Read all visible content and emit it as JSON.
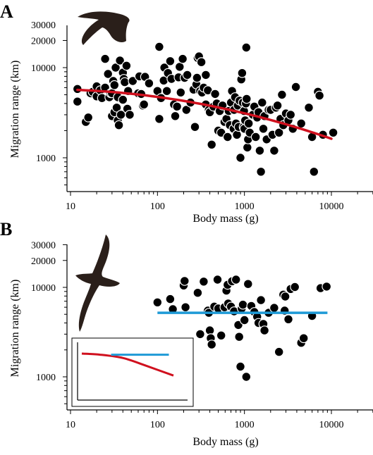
{
  "panels": [
    {
      "letter": "A",
      "silhouette": "flying-bird-icon",
      "xlabel": "Body mass (g)",
      "ylabel": "Migration range (km)"
    },
    {
      "letter": "B",
      "silhouette": "albatross-icon",
      "xlabel": "Body mass (g)",
      "ylabel": "Migration range (km)"
    }
  ],
  "colors": {
    "trend_red": "#d0101e",
    "trend_blue": "#1e9ad6",
    "points": "#000000"
  },
  "chart_data": [
    {
      "type": "scatter",
      "panel": "A",
      "xscale": "log",
      "yscale": "log",
      "xlim": [
        10,
        30000
      ],
      "ylim": [
        350,
        40000
      ],
      "x_ticks": [
        10,
        100,
        1000,
        10000
      ],
      "x_tick_labels": [
        "10",
        "100",
        "1000",
        "10000"
      ],
      "y_ticks": [
        1000,
        10000,
        20000,
        30000
      ],
      "y_tick_labels": [
        "1000",
        "10000",
        "20000",
        "30000"
      ],
      "xlabel": "Body mass (g)",
      "ylabel": "Migration range (km)",
      "points": [
        [
          12,
          4200
        ],
        [
          12,
          5800
        ],
        [
          15,
          2500
        ],
        [
          16,
          2800
        ],
        [
          17,
          5200
        ],
        [
          18,
          5400
        ],
        [
          20,
          4800
        ],
        [
          20,
          6200
        ],
        [
          22,
          5600
        ],
        [
          23,
          4600
        ],
        [
          25,
          12500
        ],
        [
          25,
          6000
        ],
        [
          27,
          8500
        ],
        [
          28,
          4700
        ],
        [
          29,
          5200
        ],
        [
          30,
          5200
        ],
        [
          30,
          2900
        ],
        [
          31,
          7100
        ],
        [
          32,
          6400
        ],
        [
          32,
          3200
        ],
        [
          33,
          10000
        ],
        [
          34,
          3600
        ],
        [
          35,
          4700
        ],
        [
          35,
          2600
        ],
        [
          36,
          2300
        ],
        [
          37,
          12000
        ],
        [
          38,
          3000
        ],
        [
          40,
          8800
        ],
        [
          40,
          4400
        ],
        [
          41,
          7500
        ],
        [
          42,
          6900
        ],
        [
          44,
          10500
        ],
        [
          45,
          3500
        ],
        [
          46,
          5500
        ],
        [
          48,
          3000
        ],
        [
          52,
          7100
        ],
        [
          60,
          5200
        ],
        [
          62,
          8000
        ],
        [
          65,
          5100
        ],
        [
          68,
          3800
        ],
        [
          70,
          3900
        ],
        [
          72,
          7900
        ],
        [
          80,
          6700
        ],
        [
          100,
          5500
        ],
        [
          105,
          17000
        ],
        [
          105,
          2700
        ],
        [
          110,
          4600
        ],
        [
          118,
          7200
        ],
        [
          120,
          10000
        ],
        [
          128,
          5500
        ],
        [
          132,
          8700
        ],
        [
          140,
          11800
        ],
        [
          145,
          7500
        ],
        [
          155,
          3900
        ],
        [
          160,
          2900
        ],
        [
          168,
          3700
        ],
        [
          175,
          7800
        ],
        [
          180,
          10200
        ],
        [
          185,
          5300
        ],
        [
          195,
          12500
        ],
        [
          205,
          7700
        ],
        [
          215,
          3400
        ],
        [
          220,
          8300
        ],
        [
          240,
          4100
        ],
        [
          260,
          5700
        ],
        [
          270,
          2200
        ],
        [
          280,
          6500
        ],
        [
          285,
          7700
        ],
        [
          290,
          12800
        ],
        [
          300,
          13300
        ],
        [
          310,
          5500
        ],
        [
          320,
          11500
        ],
        [
          325,
          5300
        ],
        [
          340,
          6000
        ],
        [
          360,
          8300
        ],
        [
          360,
          3900
        ],
        [
          380,
          5600
        ],
        [
          390,
          3400
        ],
        [
          400,
          3200
        ],
        [
          420,
          1400
        ],
        [
          440,
          3700
        ],
        [
          460,
          5100
        ],
        [
          480,
          4000
        ],
        [
          500,
          2000
        ],
        [
          520,
          3300
        ],
        [
          540,
          1900
        ],
        [
          560,
          3800
        ],
        [
          590,
          2500
        ],
        [
          620,
          2700
        ],
        [
          640,
          1700
        ],
        [
          660,
          3300
        ],
        [
          680,
          2300
        ],
        [
          700,
          4100
        ],
        [
          720,
          5500
        ],
        [
          750,
          2100
        ],
        [
          760,
          3400
        ],
        [
          780,
          4700
        ],
        [
          800,
          2400
        ],
        [
          820,
          1800
        ],
        [
          840,
          3800
        ],
        [
          860,
          2200
        ],
        [
          880,
          4300
        ],
        [
          900,
          1000
        ],
        [
          920,
          7400
        ],
        [
          940,
          8700
        ],
        [
          960,
          4100
        ],
        [
          980,
          2200
        ],
        [
          990,
          3300
        ],
        [
          1000,
          2100
        ],
        [
          1020,
          2600
        ],
        [
          1040,
          4000
        ],
        [
          1050,
          16700
        ],
        [
          1060,
          4500
        ],
        [
          1080,
          1300
        ],
        [
          1100,
          1600
        ],
        [
          1120,
          2400
        ],
        [
          1150,
          1900
        ],
        [
          1220,
          3000
        ],
        [
          1250,
          3000
        ],
        [
          1300,
          3700
        ],
        [
          1350,
          1700
        ],
        [
          1400,
          2800
        ],
        [
          1450,
          3200
        ],
        [
          1500,
          1200
        ],
        [
          1550,
          700
        ],
        [
          1600,
          4100
        ],
        [
          1650,
          2100
        ],
        [
          1700,
          2900
        ],
        [
          1800,
          1600
        ],
        [
          1900,
          3400
        ],
        [
          2000,
          3400
        ],
        [
          2100,
          1800
        ],
        [
          2200,
          1200
        ],
        [
          2300,
          3600
        ],
        [
          2400,
          3800
        ],
        [
          2500,
          1900
        ],
        [
          2600,
          2700
        ],
        [
          2700,
          5000
        ],
        [
          2800,
          2300
        ],
        [
          3000,
          3100
        ],
        [
          3200,
          2600
        ],
        [
          3400,
          3000
        ],
        [
          3600,
          2100
        ],
        [
          3900,
          6100
        ],
        [
          4500,
          2400
        ],
        [
          5500,
          3600
        ],
        [
          6000,
          1700
        ],
        [
          6300,
          700
        ],
        [
          7000,
          5400
        ],
        [
          7300,
          4900
        ],
        [
          8000,
          1800
        ],
        [
          10500,
          1900
        ]
      ],
      "trend": {
        "color": "#d0101e",
        "shape": "quadratic-decline",
        "points": [
          [
            12,
            5600
          ],
          [
            30,
            5400
          ],
          [
            100,
            4800
          ],
          [
            300,
            4000
          ],
          [
            1000,
            3100
          ],
          [
            3000,
            2300
          ],
          [
            10000,
            1650
          ]
        ]
      }
    },
    {
      "type": "scatter",
      "panel": "B",
      "xscale": "log",
      "yscale": "log",
      "xlim": [
        10,
        30000
      ],
      "ylim": [
        350,
        40000
      ],
      "x_ticks": [
        10,
        100,
        1000,
        10000
      ],
      "x_tick_labels": [
        "10",
        "100",
        "1000",
        "10000"
      ],
      "y_ticks": [
        1000,
        10000,
        20000,
        30000
      ],
      "y_tick_labels": [
        "1000",
        "10000",
        "20000",
        "30000"
      ],
      "xlabel": "Body mass (g)",
      "ylabel": "Migration range (km)",
      "points": [
        [
          100,
          6800
        ],
        [
          140,
          7400
        ],
        [
          150,
          5700
        ],
        [
          200,
          10500
        ],
        [
          205,
          11800
        ],
        [
          210,
          6000
        ],
        [
          290,
          8700
        ],
        [
          310,
          3000
        ],
        [
          340,
          11600
        ],
        [
          380,
          5500
        ],
        [
          390,
          5200
        ],
        [
          400,
          3300
        ],
        [
          410,
          2700
        ],
        [
          420,
          2300
        ],
        [
          450,
          6100
        ],
        [
          490,
          12200
        ],
        [
          500,
          5800
        ],
        [
          540,
          2900
        ],
        [
          590,
          6000
        ],
        [
          620,
          9200
        ],
        [
          640,
          10700
        ],
        [
          650,
          6600
        ],
        [
          700,
          6100
        ],
        [
          720,
          11700
        ],
        [
          760,
          5400
        ],
        [
          800,
          12200
        ],
        [
          850,
          3800
        ],
        [
          870,
          2800
        ],
        [
          900,
          1300
        ],
        [
          930,
          5800
        ],
        [
          960,
          6400
        ],
        [
          1000,
          4300
        ],
        [
          1050,
          1000
        ],
        [
          1100,
          10900
        ],
        [
          1200,
          6200
        ],
        [
          1300,
          5300
        ],
        [
          1400,
          4700
        ],
        [
          1450,
          4000
        ],
        [
          1550,
          7200
        ],
        [
          1650,
          3900
        ],
        [
          1700,
          3300
        ],
        [
          1900,
          5200
        ],
        [
          2200,
          5900
        ],
        [
          2500,
          1900
        ],
        [
          2800,
          8300
        ],
        [
          2900,
          5500
        ],
        [
          2950,
          7900
        ],
        [
          3200,
          4400
        ],
        [
          3400,
          9600
        ],
        [
          3800,
          10100
        ],
        [
          4500,
          2400
        ],
        [
          4800,
          2700
        ],
        [
          6000,
          4800
        ],
        [
          7500,
          9800
        ],
        [
          8800,
          10200
        ]
      ],
      "trend": {
        "color": "#1e9ad6",
        "shape": "flat",
        "points": [
          [
            100,
            5200
          ],
          [
            9000,
            5200
          ]
        ]
      }
    },
    {
      "type": "line",
      "panel": "B-inset",
      "note": "schematic comparison of the two fitted trends, no axis labels",
      "series": [
        {
          "color": "#d0101e",
          "points": [
            [
              0,
              0.82
            ],
            [
              0.2,
              0.8
            ],
            [
              0.45,
              0.74
            ],
            [
              0.7,
              0.6
            ],
            [
              1,
              0.42
            ]
          ]
        },
        {
          "color": "#1e9ad6",
          "points": [
            [
              0.32,
              0.8
            ],
            [
              0.95,
              0.8
            ]
          ]
        }
      ]
    }
  ]
}
